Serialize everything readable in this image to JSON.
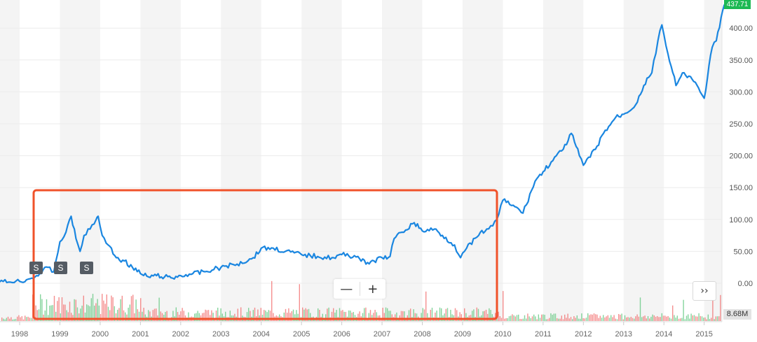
{
  "chart_data": {
    "type": "line",
    "title": "",
    "xlabel": "",
    "ylabel": "",
    "ylim": [
      0,
      450
    ],
    "y_ticks": [
      "0.00",
      "50.00",
      "100.00",
      "150.00",
      "200.00",
      "250.00",
      "300.00",
      "350.00",
      "400.00"
    ],
    "x_ticks": [
      "1998",
      "1999",
      "2000",
      "2001",
      "2002",
      "2003",
      "2004",
      "2005",
      "2006",
      "2007",
      "2008",
      "2009",
      "2010",
      "2011",
      "2012",
      "2013",
      "2014",
      "2015"
    ],
    "last_price": "437.71",
    "volume_label": "8.68M",
    "grid": "horizontal",
    "alternating_year_bands": true,
    "series": [
      {
        "color": "#1a86e0",
        "x": [
          1997.5,
          1998.0,
          1998.3,
          1998.5,
          1998.7,
          1998.85,
          1999.0,
          1999.15,
          1999.28,
          1999.4,
          1999.5,
          1999.6,
          1999.75,
          1999.9,
          1999.95,
          2000.05,
          2000.2,
          2000.4,
          2000.6,
          2000.8,
          2001.0,
          2001.2,
          2001.4,
          2001.6,
          2001.8,
          2002.0,
          2002.3,
          2002.6,
          2003.0,
          2003.4,
          2003.8,
          2004.0,
          2004.3,
          2004.6,
          2005.0,
          2005.4,
          2005.8,
          2006.0,
          2006.4,
          2006.6,
          2006.8,
          2007.0,
          2007.2,
          2007.3,
          2007.5,
          2007.8,
          2008.0,
          2008.3,
          2008.5,
          2008.8,
          2008.95,
          2009.1,
          2009.4,
          2009.6,
          2009.75,
          2009.85,
          2010.0,
          2010.3,
          2010.5,
          2010.8,
          2011.0,
          2011.2,
          2011.5,
          2011.7,
          2011.9,
          2012.0,
          2012.3,
          2012.5,
          2012.8,
          2013.0,
          2013.3,
          2013.5,
          2013.7,
          2013.85,
          2013.95,
          2014.1,
          2014.3,
          2014.5,
          2014.7,
          2014.9,
          2015.0,
          2015.2,
          2015.3,
          2015.5
        ],
        "y": [
          2,
          3,
          8,
          15,
          25,
          18,
          65,
          80,
          105,
          70,
          50,
          75,
          85,
          100,
          105,
          75,
          60,
          40,
          35,
          25,
          15,
          10,
          12,
          10,
          8,
          12,
          15,
          18,
          25,
          30,
          40,
          55,
          55,
          50,
          45,
          42,
          40,
          45,
          42,
          30,
          35,
          40,
          42,
          70,
          80,
          95,
          82,
          85,
          75,
          60,
          40,
          55,
          75,
          85,
          90,
          100,
          130,
          120,
          110,
          160,
          175,
          190,
          210,
          235,
          200,
          185,
          210,
          235,
          260,
          265,
          280,
          310,
          330,
          380,
          405,
          360,
          310,
          330,
          320,
          300,
          290,
          370,
          380,
          437
        ]
      }
    ]
  },
  "markers": [
    {
      "label": "S"
    },
    {
      "label": "S"
    },
    {
      "label": "S"
    }
  ],
  "controls": {
    "zoom_out": "—",
    "zoom_in": "+",
    "scroll_right": "››"
  }
}
